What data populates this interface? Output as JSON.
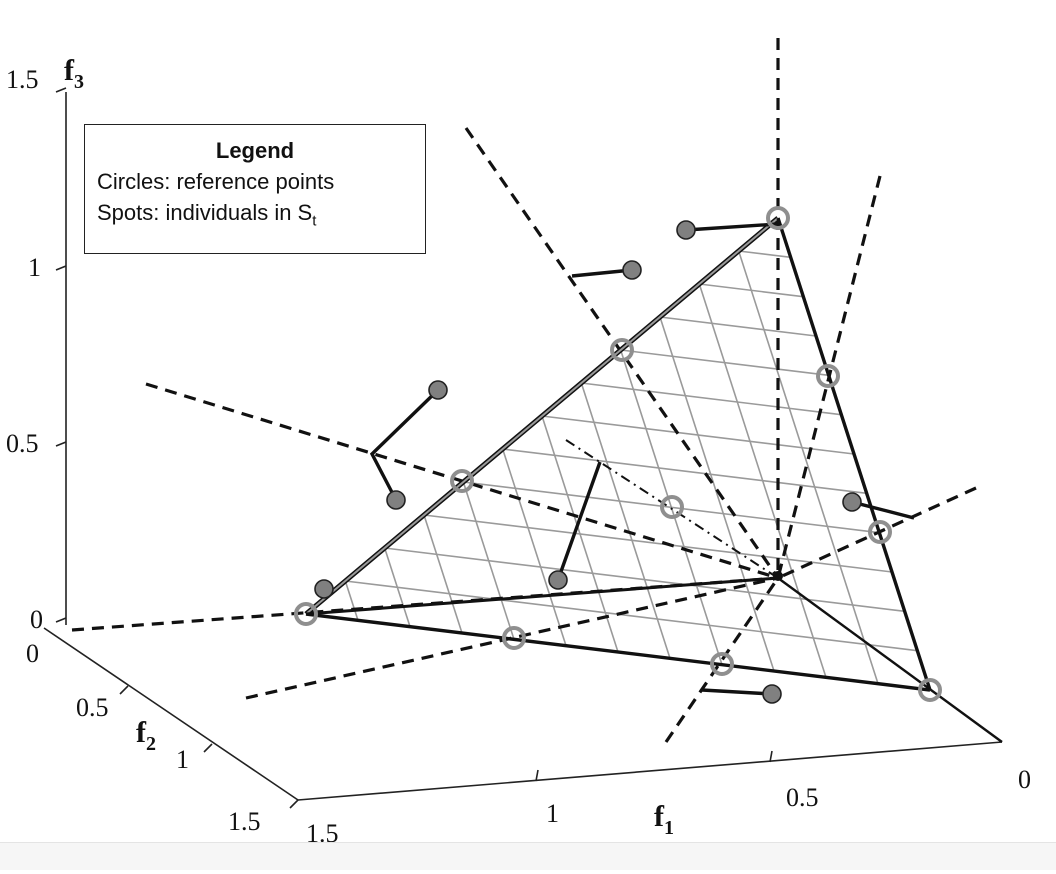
{
  "legend": {
    "title": "Legend",
    "line1": "Circles: reference points",
    "line2_prefix": "Spots: individuals in S",
    "line2_sub": "t"
  },
  "axes": {
    "f1": {
      "label": "f",
      "sub": "1",
      "ticks": [
        "1.5",
        "1",
        "0.5",
        "0"
      ]
    },
    "f2": {
      "label": "f",
      "sub": "2",
      "ticks": [
        "0",
        "0.5",
        "1",
        "1.5"
      ]
    },
    "f3": {
      "label": "f",
      "sub": "3",
      "ticks": [
        "0",
        "0.5",
        "1",
        "1.5"
      ]
    }
  },
  "colors": {
    "ink": "#111111",
    "grid": "#9a9a9a",
    "ref_ring": "#8f8f8f",
    "spot_fill": "#808080"
  }
}
